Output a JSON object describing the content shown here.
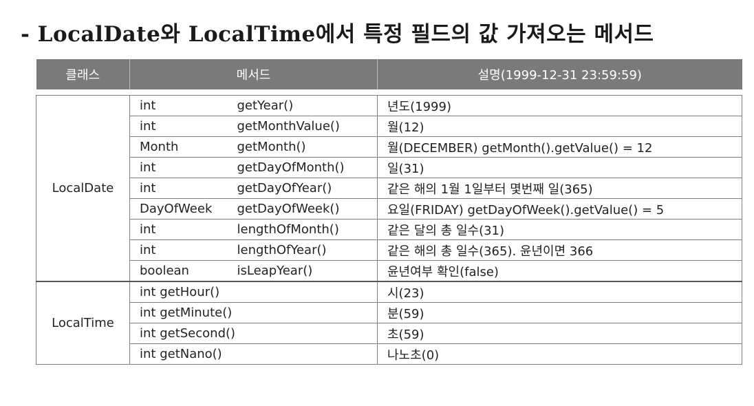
{
  "title": "- LocalDate와 LocalTime에서 특정 필드의 값 가져오는 메서드",
  "header": {
    "class_col": "클래스",
    "method_col": "메서드",
    "desc_col": "설명(1999-12-31 23:59:59)"
  },
  "local_date": {
    "class_name": "LocalDate",
    "rows": [
      {
        "type": "int",
        "method": "getYear()",
        "desc": "년도(1999)"
      },
      {
        "type": "int",
        "method": "getMonthValue()",
        "desc": "월(12)"
      },
      {
        "type": "Month",
        "method": "getMonth()",
        "desc": "월(DECEMBER) getMonth().getValue() = 12"
      },
      {
        "type": "int",
        "method": "getDayOfMonth()",
        "desc": "일(31)"
      },
      {
        "type": "int",
        "method": "getDayOfYear()",
        "desc": "같은 해의 1월 1일부터 몇번째 일(365)"
      },
      {
        "type": "DayOfWeek",
        "method": "getDayOfWeek()",
        "desc": "요일(FRIDAY) getDayOfWeek().getValue() = 5"
      },
      {
        "type": "int",
        "method": "lengthOfMonth()",
        "desc": "같은 달의 총 일수(31)"
      },
      {
        "type": "int",
        "method": "lengthOfYear()",
        "desc": "같은 해의 총 일수(365). 윤년이면 366"
      },
      {
        "type": "boolean",
        "method": "isLeapYear()",
        "desc": "윤년여부 확인(false)"
      }
    ]
  },
  "local_time": {
    "class_name": "LocalTime",
    "rows": [
      {
        "method": "int getHour()",
        "desc": "시(23)"
      },
      {
        "method": "int getMinute()",
        "desc": "분(59)"
      },
      {
        "method": "int getSecond()",
        "desc": "초(59)"
      },
      {
        "method": "int getNano()",
        "desc": "나노초(0)"
      }
    ]
  }
}
